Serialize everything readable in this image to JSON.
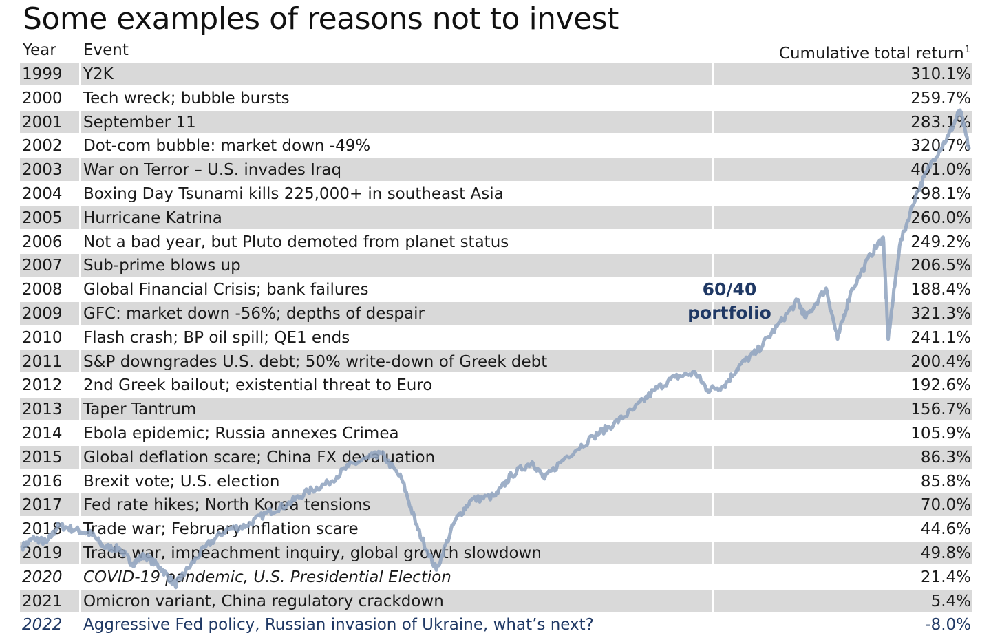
{
  "title": "Some examples of reasons not to invest",
  "table": {
    "headers": {
      "year": "Year",
      "event": "Event",
      "return": "Cumulative total return",
      "return_note": "1"
    },
    "rows": [
      {
        "year": "1999",
        "event": "Y2K",
        "return": "310.1%"
      },
      {
        "year": "2000",
        "event": "Tech wreck; bubble bursts",
        "return": "259.7%"
      },
      {
        "year": "2001",
        "event": "September 11",
        "return": "283.1%"
      },
      {
        "year": "2002",
        "event": "Dot-com bubble: market down -49%",
        "return": "320.7%"
      },
      {
        "year": "2003",
        "event": "War on Terror – U.S. invades Iraq",
        "return": "401.0%"
      },
      {
        "year": "2004",
        "event": "Boxing Day Tsunami kills 225,000+ in southeast Asia",
        "return": "298.1%"
      },
      {
        "year": "2005",
        "event": "Hurricane Katrina",
        "return": "260.0%"
      },
      {
        "year": "2006",
        "event": "Not a bad year, but Pluto demoted from planet status",
        "return": "249.2%"
      },
      {
        "year": "2007",
        "event": "Sub-prime blows up",
        "return": "206.5%"
      },
      {
        "year": "2008",
        "event": "Global Financial Crisis; bank failures",
        "return": "188.4%"
      },
      {
        "year": "2009",
        "event": "GFC: market down -56%; depths of despair",
        "return": "321.3%"
      },
      {
        "year": "2010",
        "event": "Flash crash; BP oil spill; QE1 ends",
        "return": "241.1%"
      },
      {
        "year": "2011",
        "event": "S&P downgrades U.S. debt; 50% write-down of Greek debt",
        "return": "200.4%"
      },
      {
        "year": "2012",
        "event": "2nd Greek bailout; existential threat to Euro",
        "return": "192.6%"
      },
      {
        "year": "2013",
        "event": "Taper Tantrum",
        "return": "156.7%"
      },
      {
        "year": "2014",
        "event": "Ebola epidemic; Russia annexes Crimea",
        "return": "105.9%"
      },
      {
        "year": "2015",
        "event": "Global deflation scare; China FX devaluation",
        "return": "86.3%"
      },
      {
        "year": "2016",
        "event": "Brexit vote; U.S. election",
        "return": "85.8%"
      },
      {
        "year": "2017",
        "event": "Fed rate hikes; North Korea tensions",
        "return": "70.0%"
      },
      {
        "year": "2018",
        "event": "Trade war; February inflation scare",
        "return": "44.6%"
      },
      {
        "year": "2019",
        "event": "Trade war, impeachment inquiry, global growth slowdown",
        "return": "49.8%"
      },
      {
        "year": "2020",
        "event": "COVID-19 pandemic, U.S. Presidential Election",
        "return": "21.4%",
        "style": "italic"
      },
      {
        "year": "2021",
        "event": "Omicron variant, China regulatory crackdown",
        "return": "5.4%"
      },
      {
        "year": "2022",
        "event": "Aggressive Fed policy, Russian invasion of Ukraine, what’s next?",
        "return": "-8.0%",
        "style": "highlight"
      }
    ]
  },
  "chart_data": {
    "type": "line",
    "series": [
      {
        "name": "60/40 portfolio",
        "points": [
          [
            1999.0,
            0.98
          ],
          [
            1999.3,
            1.02
          ],
          [
            1999.6,
            1.0
          ],
          [
            1999.9,
            1.08
          ],
          [
            2000.3,
            1.06
          ],
          [
            2000.7,
            1.04
          ],
          [
            2001.0,
            0.98
          ],
          [
            2001.4,
            0.97
          ],
          [
            2001.7,
            0.9
          ],
          [
            2002.0,
            0.94
          ],
          [
            2002.4,
            0.88
          ],
          [
            2002.75,
            0.8
          ],
          [
            2003.0,
            0.86
          ],
          [
            2003.5,
            0.98
          ],
          [
            2004.0,
            1.06
          ],
          [
            2004.5,
            1.08
          ],
          [
            2005.0,
            1.14
          ],
          [
            2005.5,
            1.18
          ],
          [
            2006.0,
            1.24
          ],
          [
            2006.5,
            1.28
          ],
          [
            2007.0,
            1.36
          ],
          [
            2007.5,
            1.4
          ],
          [
            2007.8,
            1.42
          ],
          [
            2008.3,
            1.3
          ],
          [
            2008.7,
            1.06
          ],
          [
            2009.15,
            0.87
          ],
          [
            2009.6,
            1.1
          ],
          [
            2010.0,
            1.2
          ],
          [
            2010.6,
            1.22
          ],
          [
            2011.0,
            1.32
          ],
          [
            2011.5,
            1.38
          ],
          [
            2011.8,
            1.3
          ],
          [
            2012.3,
            1.4
          ],
          [
            2013.0,
            1.5
          ],
          [
            2013.5,
            1.56
          ],
          [
            2014.0,
            1.63
          ],
          [
            2014.5,
            1.72
          ],
          [
            2015.0,
            1.78
          ],
          [
            2015.5,
            1.8
          ],
          [
            2015.8,
            1.72
          ],
          [
            2016.2,
            1.74
          ],
          [
            2016.6,
            1.84
          ],
          [
            2017.0,
            1.9
          ],
          [
            2017.5,
            2.02
          ],
          [
            2018.0,
            2.14
          ],
          [
            2018.2,
            2.06
          ],
          [
            2018.7,
            2.2
          ],
          [
            2018.98,
            1.96
          ],
          [
            2019.3,
            2.18
          ],
          [
            2019.8,
            2.36
          ],
          [
            2020.1,
            2.44
          ],
          [
            2020.22,
            1.96
          ],
          [
            2020.5,
            2.4
          ],
          [
            2020.9,
            2.64
          ],
          [
            2021.3,
            2.8
          ],
          [
            2021.7,
            2.92
          ],
          [
            2021.98,
            3.04
          ],
          [
            2022.2,
            2.86
          ]
        ]
      }
    ],
    "label": "60/40\nportfolio"
  }
}
